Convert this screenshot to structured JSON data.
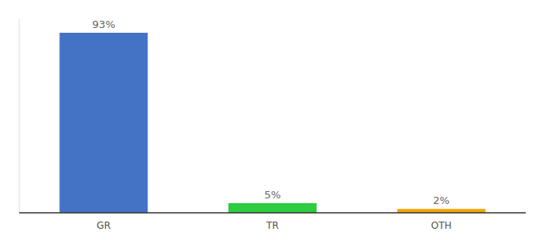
{
  "chart_data": {
    "type": "bar",
    "categories": [
      "GR",
      "TR",
      "OTH"
    ],
    "values": [
      93,
      5,
      2
    ],
    "value_labels": [
      "93%",
      "5%",
      "2%"
    ],
    "colors": [
      "#4472c4",
      "#2ecc40",
      "#f0a500"
    ],
    "ylim": [
      0,
      100
    ],
    "data_labels": true,
    "tick_labels": "x"
  }
}
